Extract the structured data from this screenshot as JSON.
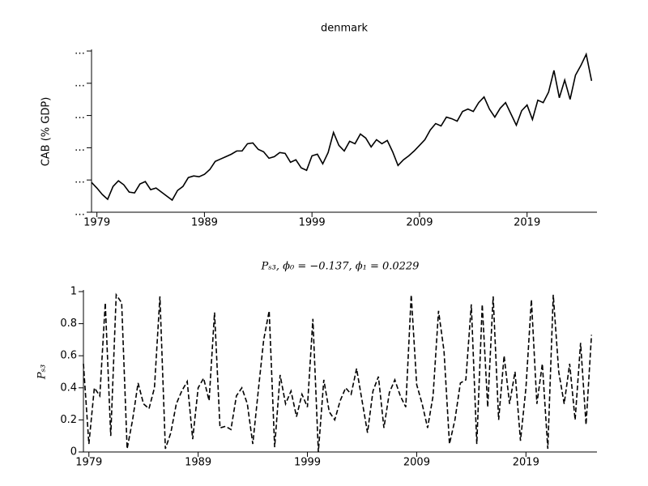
{
  "chart_data": [
    {
      "type": "line",
      "title": "denmark",
      "y_label": "CAB (% GDP)",
      "color": "#000000",
      "linestyle": "solid",
      "x": [
        1978.5,
        1979,
        1979.5,
        1980,
        1980.5,
        1981,
        1981.5,
        1982,
        1982.5,
        1983,
        1983.5,
        1984,
        1984.5,
        1985,
        1985.5,
        1986,
        1986.5,
        1987,
        1987.5,
        1988,
        1988.5,
        1989,
        1989.5,
        1990,
        1990.5,
        1991,
        1991.5,
        1992,
        1992.5,
        1993,
        1993.5,
        1994,
        1994.5,
        1995,
        1995.5,
        1996,
        1996.5,
        1997,
        1997.5,
        1998,
        1998.5,
        1999,
        1999.5,
        2000,
        2000.5,
        2001,
        2001.5,
        2002,
        2002.5,
        2003,
        2003.5,
        2004,
        2004.5,
        2005,
        2005.5,
        2006,
        2006.5,
        2007,
        2007.5,
        2008,
        2008.5,
        2009,
        2009.5,
        2010,
        2010.5,
        2011,
        2011.5,
        2012,
        2012.5,
        2013,
        2013.5,
        2014,
        2014.5,
        2015,
        2015.5,
        2016,
        2016.5,
        2017,
        2017.5,
        2018,
        2018.5,
        2019,
        2019.5,
        2020,
        2020.5,
        2021,
        2021.5,
        2022,
        2022.5,
        2023,
        2023.5,
        2024,
        2024.5,
        2025
      ],
      "values": [
        -2.3,
        -3.0,
        -3.8,
        -4.4,
        -2.8,
        -2.1,
        -2.6,
        -3.5,
        -3.6,
        -2.5,
        -2.2,
        -3.2,
        -3.0,
        -3.5,
        -4.0,
        -4.5,
        -3.3,
        -2.8,
        -1.7,
        -1.5,
        -1.6,
        -1.3,
        -0.7,
        0.3,
        0.6,
        0.9,
        1.2,
        1.6,
        1.6,
        2.5,
        2.6,
        1.8,
        1.5,
        0.7,
        0.9,
        1.4,
        1.3,
        0.2,
        0.5,
        -0.5,
        -0.8,
        1.0,
        1.2,
        0.0,
        1.4,
        3.9,
        2.3,
        1.6,
        2.8,
        2.5,
        3.7,
        3.2,
        2.1,
        3.0,
        2.5,
        2.9,
        1.5,
        -0.2,
        0.5,
        1.0,
        1.6,
        2.3,
        3.0,
        4.2,
        5.0,
        4.7,
        5.8,
        5.6,
        5.3,
        6.5,
        6.8,
        6.5,
        7.6,
        8.3,
        6.8,
        5.8,
        6.9,
        7.6,
        6.2,
        4.8,
        6.6,
        7.3,
        5.5,
        7.9,
        7.6,
        8.9,
        11.6,
        8.2,
        10.4,
        8.0,
        11.0,
        12.2,
        13.6,
        10.3
      ],
      "xlim": [
        1978.5,
        2025.5
      ],
      "xticks": [
        1979,
        1989,
        1999,
        2009,
        2019
      ],
      "ylim": [
        -6,
        14
      ],
      "yticks": [
        {
          "value": -6,
          "label": "…"
        },
        {
          "value": -2,
          "label": "…"
        },
        {
          "value": 2,
          "label": "…"
        },
        {
          "value": 6,
          "label": "…"
        },
        {
          "value": 10,
          "label": "…"
        },
        {
          "value": 14,
          "label": "…"
        }
      ]
    },
    {
      "type": "line",
      "title": "Pₛ₃, ϕ₀ = −0.137, ϕ₁ = 0.0229",
      "y_label": "Pₛ₃",
      "color": "#000000",
      "linestyle": "dashed",
      "x": [
        1978.5,
        1979,
        1979.5,
        1980,
        1980.5,
        1981,
        1981.5,
        1982,
        1982.5,
        1983,
        1983.5,
        1984,
        1984.5,
        1985,
        1985.5,
        1986,
        1986.5,
        1987,
        1987.5,
        1988,
        1988.5,
        1989,
        1989.5,
        1990,
        1990.5,
        1991,
        1991.5,
        1992,
        1992.5,
        1993,
        1993.5,
        1994,
        1994.5,
        1995,
        1995.5,
        1996,
        1996.5,
        1997,
        1997.5,
        1998,
        1998.5,
        1999,
        1999.5,
        2000,
        2000.5,
        2001,
        2001.5,
        2002,
        2002.5,
        2003,
        2003.5,
        2004,
        2004.5,
        2005,
        2005.5,
        2006,
        2006.5,
        2007,
        2007.5,
        2008,
        2008.5,
        2009,
        2009.5,
        2010,
        2010.5,
        2011,
        2011.5,
        2012,
        2012.5,
        2013,
        2013.5,
        2014,
        2014.5,
        2015,
        2015.5,
        2016,
        2016.5,
        2017,
        2017.5,
        2018,
        2018.5,
        2019,
        2019.5,
        2020,
        2020.5,
        2021,
        2021.5,
        2022,
        2022.5,
        2023,
        2023.5,
        2024,
        2024.5,
        2025
      ],
      "values": [
        0.55,
        0.05,
        0.4,
        0.35,
        0.93,
        0.1,
        0.98,
        0.93,
        0.02,
        0.2,
        0.43,
        0.3,
        0.27,
        0.4,
        0.97,
        0.02,
        0.12,
        0.3,
        0.38,
        0.44,
        0.08,
        0.4,
        0.46,
        0.32,
        0.87,
        0.15,
        0.16,
        0.14,
        0.35,
        0.4,
        0.3,
        0.05,
        0.38,
        0.7,
        0.88,
        0.03,
        0.48,
        0.3,
        0.38,
        0.22,
        0.36,
        0.28,
        0.83,
        0.0,
        0.45,
        0.25,
        0.2,
        0.32,
        0.4,
        0.36,
        0.52,
        0.32,
        0.12,
        0.38,
        0.47,
        0.15,
        0.37,
        0.45,
        0.35,
        0.28,
        0.98,
        0.42,
        0.3,
        0.15,
        0.35,
        0.88,
        0.63,
        0.05,
        0.2,
        0.43,
        0.45,
        0.92,
        0.05,
        0.92,
        0.28,
        0.97,
        0.2,
        0.6,
        0.3,
        0.5,
        0.07,
        0.4,
        0.95,
        0.3,
        0.55,
        0.02,
        0.98,
        0.5,
        0.3,
        0.55,
        0.2,
        0.68,
        0.17,
        0.73
      ],
      "xlim": [
        1978.5,
        2025.5
      ],
      "xticks": [
        1979,
        1989,
        1999,
        2009,
        2019
      ],
      "ylim": [
        0,
        1
      ],
      "yticks": [
        0,
        0.2,
        0.4,
        0.6,
        0.8,
        1
      ]
    }
  ]
}
